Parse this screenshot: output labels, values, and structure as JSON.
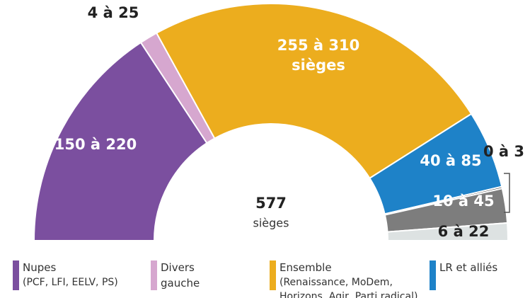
{
  "chart_data": {
    "type": "semicircle",
    "total": 577,
    "total_label": "sièges",
    "series": [
      {
        "name": "Nupes",
        "detail": "(PCF, LFI, EELV, PS)",
        "color": "#7b4f9f",
        "values": [
          150,
          220
        ],
        "value_labels": "150 à 220"
      },
      {
        "name": "Divers gauche",
        "color": "#d6a7cf",
        "values": [
          4,
          25
        ],
        "value_labels": "4 à 25"
      },
      {
        "name": "Ensemble",
        "detail": "(Renaissance, MoDem, Horizons, Agir, Parti radical)",
        "color": "#ecad1e",
        "values": [
          255,
          310
        ],
        "value_labels": "255 à 310",
        "label_unit": "sièges"
      },
      {
        "name": "LR et alliés",
        "color": "#1e82c8",
        "values": [
          40,
          85
        ],
        "value_labels": "40 à 85"
      },
      {
        "color": "#333333",
        "values": [
          0,
          3
        ],
        "value_labels": "0 à 3"
      },
      {
        "color": "#7d7d7d",
        "values": [
          10,
          45
        ],
        "value_labels": "10 à 45"
      },
      {
        "color": "#dde2e2",
        "values": [
          6,
          22
        ],
        "value_labels": "6 à 22"
      }
    ]
  }
}
